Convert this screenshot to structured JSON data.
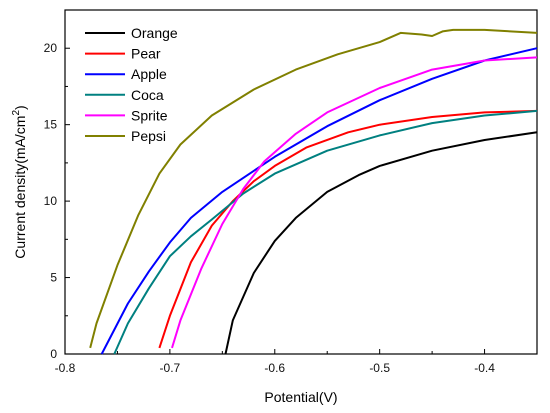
{
  "chart_data": {
    "type": "line",
    "title": "",
    "xlabel": "Potential(V)",
    "ylabel_main": "Current density(mA/cm",
    "ylabel_sup": "2",
    "ylabel_close": ")",
    "xlim": [
      -0.8,
      -0.35
    ],
    "ylim": [
      0,
      22.5
    ],
    "x_ticks": [
      -0.8,
      -0.7,
      -0.6,
      -0.5,
      -0.4
    ],
    "x_tick_labels": [
      "-0.8",
      "-0.7",
      "-0.6",
      "-0.5",
      "-0.4"
    ],
    "y_ticks": [
      0,
      5,
      10,
      15,
      20
    ],
    "y_tick_labels": [
      "0",
      "5",
      "10",
      "15",
      "20"
    ],
    "grid": false,
    "legend_position": "top-left",
    "series": [
      {
        "name": "Orange",
        "color": "#000000",
        "points": [
          [
            -0.647,
            0
          ],
          [
            -0.64,
            2.2
          ],
          [
            -0.62,
            5.3
          ],
          [
            -0.6,
            7.4
          ],
          [
            -0.58,
            8.9
          ],
          [
            -0.55,
            10.6
          ],
          [
            -0.52,
            11.7
          ],
          [
            -0.5,
            12.3
          ],
          [
            -0.45,
            13.3
          ],
          [
            -0.4,
            14.0
          ],
          [
            -0.35,
            14.5
          ]
        ]
      },
      {
        "name": "Pear",
        "color": "#ff0000",
        "points": [
          [
            -0.71,
            0.4
          ],
          [
            -0.7,
            2.5
          ],
          [
            -0.68,
            6.0
          ],
          [
            -0.66,
            8.4
          ],
          [
            -0.64,
            10.0
          ],
          [
            -0.62,
            11.3
          ],
          [
            -0.6,
            12.3
          ],
          [
            -0.57,
            13.5
          ],
          [
            -0.53,
            14.5
          ],
          [
            -0.5,
            15.0
          ],
          [
            -0.45,
            15.5
          ],
          [
            -0.4,
            15.8
          ],
          [
            -0.35,
            15.9
          ]
        ]
      },
      {
        "name": "Apple",
        "color": "#0000ff",
        "points": [
          [
            -0.765,
            0
          ],
          [
            -0.74,
            3.3
          ],
          [
            -0.72,
            5.4
          ],
          [
            -0.7,
            7.3
          ],
          [
            -0.68,
            8.9
          ],
          [
            -0.65,
            10.6
          ],
          [
            -0.6,
            12.9
          ],
          [
            -0.55,
            14.9
          ],
          [
            -0.5,
            16.6
          ],
          [
            -0.45,
            18.0
          ],
          [
            -0.4,
            19.2
          ],
          [
            -0.35,
            20.0
          ]
        ]
      },
      {
        "name": "Coca",
        "color": "#008080",
        "points": [
          [
            -0.753,
            0
          ],
          [
            -0.74,
            2.0
          ],
          [
            -0.72,
            4.3
          ],
          [
            -0.7,
            6.4
          ],
          [
            -0.68,
            7.7
          ],
          [
            -0.66,
            8.8
          ],
          [
            -0.63,
            10.5
          ],
          [
            -0.6,
            11.8
          ],
          [
            -0.55,
            13.3
          ],
          [
            -0.5,
            14.3
          ],
          [
            -0.45,
            15.1
          ],
          [
            -0.4,
            15.6
          ],
          [
            -0.35,
            15.9
          ]
        ]
      },
      {
        "name": "Sprite",
        "color": "#ff00ff",
        "points": [
          [
            -0.698,
            0.4
          ],
          [
            -0.69,
            2.2
          ],
          [
            -0.67,
            5.6
          ],
          [
            -0.65,
            8.5
          ],
          [
            -0.63,
            10.8
          ],
          [
            -0.61,
            12.6
          ],
          [
            -0.58,
            14.4
          ],
          [
            -0.55,
            15.8
          ],
          [
            -0.5,
            17.4
          ],
          [
            -0.45,
            18.6
          ],
          [
            -0.4,
            19.2
          ],
          [
            -0.35,
            19.4
          ]
        ]
      },
      {
        "name": "Pepsi",
        "color": "#808000",
        "points": [
          [
            -0.776,
            0.4
          ],
          [
            -0.77,
            2.0
          ],
          [
            -0.75,
            5.8
          ],
          [
            -0.73,
            9.1
          ],
          [
            -0.71,
            11.8
          ],
          [
            -0.69,
            13.7
          ],
          [
            -0.66,
            15.6
          ],
          [
            -0.62,
            17.3
          ],
          [
            -0.58,
            18.6
          ],
          [
            -0.54,
            19.6
          ],
          [
            -0.5,
            20.4
          ],
          [
            -0.48,
            21.0
          ],
          [
            -0.46,
            20.9
          ],
          [
            -0.45,
            20.8
          ],
          [
            -0.44,
            21.1
          ],
          [
            -0.43,
            21.2
          ],
          [
            -0.4,
            21.2
          ],
          [
            -0.35,
            21.0
          ]
        ]
      }
    ]
  }
}
